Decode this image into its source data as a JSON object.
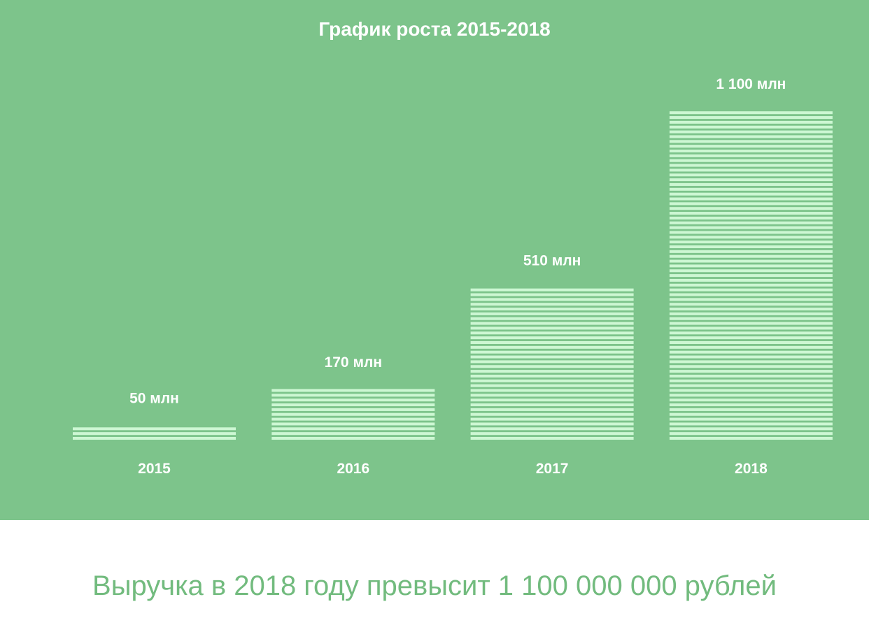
{
  "chart_data": {
    "type": "bar",
    "title": "График роста 2015-2018",
    "categories": [
      "2015",
      "2016",
      "2017",
      "2018"
    ],
    "values": [
      50,
      170,
      510,
      1100
    ],
    "data_labels": [
      "50 млн",
      "170 млн",
      "510 млн",
      "1 100 млн"
    ],
    "xlabel": "",
    "ylabel": "",
    "ylim": [
      0,
      1100
    ],
    "grid": false,
    "legend": "none"
  },
  "colors": {
    "background": "#7dc48b",
    "bar_stripe": "#cdf7d3",
    "text": "#ffffff",
    "footer_text": "#72bb7e"
  },
  "footer": {
    "text": "Выручка в 2018 году превысит 1 100 000 000 рублей"
  }
}
